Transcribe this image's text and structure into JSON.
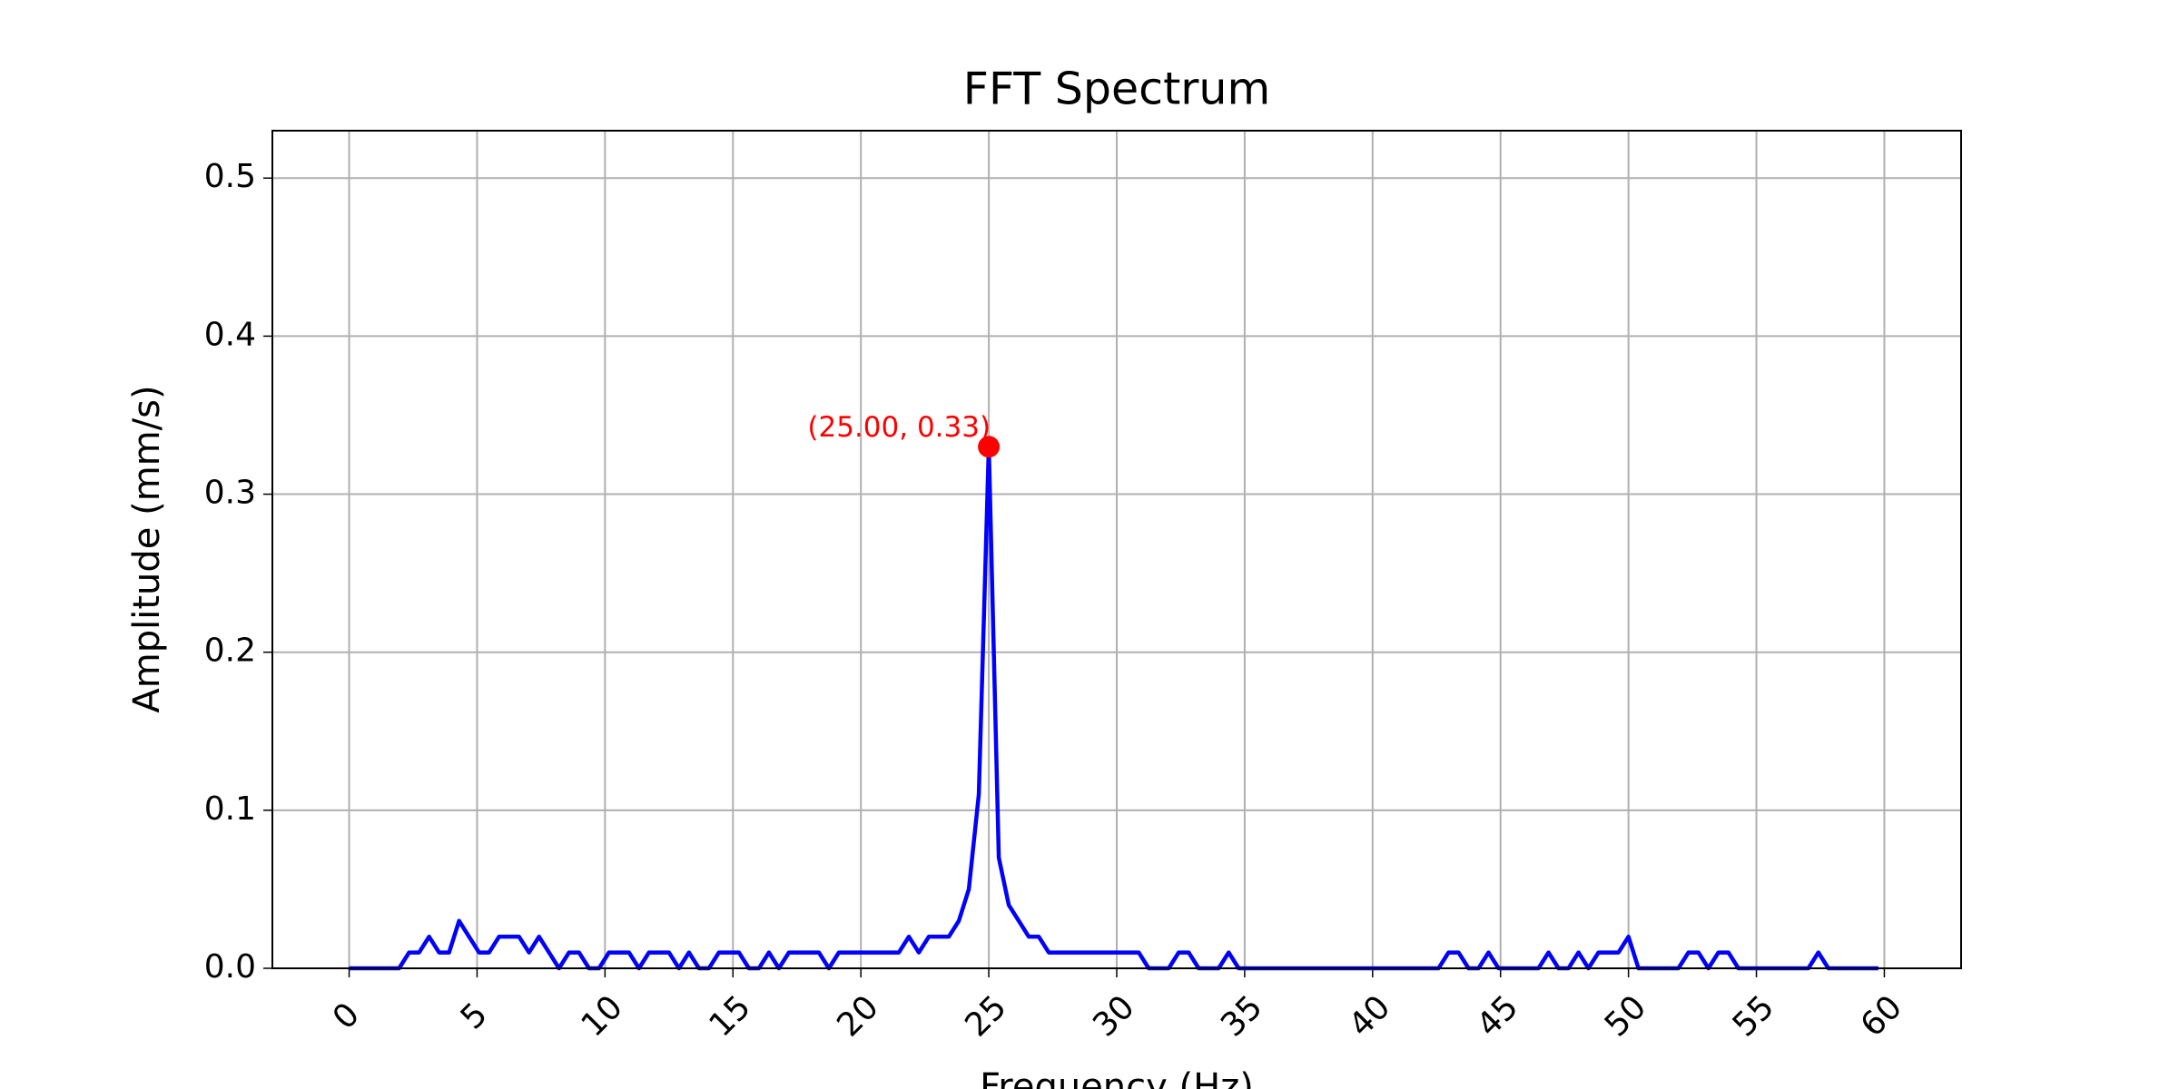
{
  "chart_data": {
    "type": "line",
    "title": "FFT Spectrum",
    "x_label": "Frequency (Hz)",
    "y_label": "Amplitude (mm/s)",
    "x": [
      0,
      0.390625,
      0.78125,
      1.171875,
      1.5625,
      1.953125,
      2.34375,
      2.734375,
      3.125,
      3.515625,
      3.90625,
      4.296875,
      4.6875,
      5.078125,
      5.46875,
      5.859375,
      6.25,
      6.640625,
      7.03125,
      7.421875,
      7.8125,
      8.203125,
      8.59375,
      8.984375,
      9.375,
      9.765625,
      10.15625,
      10.546875,
      10.9375,
      11.328125,
      11.71875,
      12.109375,
      12.5,
      12.890625,
      13.28125,
      13.671875,
      14.0625,
      14.453125,
      14.84375,
      15.234375,
      15.625,
      16.015625,
      16.40625,
      16.796875,
      17.1875,
      17.578125,
      17.96875,
      18.359375,
      18.75,
      19.140625,
      19.53125,
      19.921875,
      20.3125,
      20.703125,
      21.09375,
      21.484375,
      21.875,
      22.265625,
      22.65625,
      23.046875,
      23.4375,
      23.828125,
      24.21875,
      24.609375,
      25,
      25.390625,
      25.78125,
      26.171875,
      26.5625,
      26.953125,
      27.34375,
      27.734375,
      28.125,
      28.515625,
      28.90625,
      29.296875,
      29.6875,
      30.078125,
      30.46875,
      30.859375,
      31.25,
      31.640625,
      32.03125,
      32.421875,
      32.8125,
      33.203125,
      33.59375,
      33.984375,
      34.375,
      34.765625,
      35.15625,
      35.546875,
      35.9375,
      36.328125,
      36.71875,
      37.109375,
      37.5,
      37.890625,
      38.28125,
      38.671875,
      39.0625,
      39.453125,
      39.84375,
      40.234375,
      40.625,
      41.015625,
      41.40625,
      41.796875,
      42.1875,
      42.578125,
      42.96875,
      43.359375,
      43.75,
      44.140625,
      44.53125,
      44.921875,
      45.3125,
      45.703125,
      46.09375,
      46.484375,
      46.875,
      47.265625,
      47.65625,
      48.046875,
      48.4375,
      48.828125,
      49.21875,
      49.609375,
      50,
      50.390625,
      50.78125,
      51.171875,
      51.5625,
      51.953125,
      52.34375,
      52.734375,
      53.125,
      53.515625,
      53.90625,
      54.296875,
      54.6875,
      55.078125,
      55.46875,
      55.859375,
      56.25,
      56.640625,
      57.03125,
      57.421875,
      57.8125,
      58.203125,
      58.59375,
      58.984375,
      59.375,
      59.765625
    ],
    "series": [
      {
        "color": "#0000ff",
        "values": [
          0,
          0,
          0,
          0,
          0,
          0,
          0.01,
          0.01,
          0.02,
          0.01,
          0.01,
          0.03,
          0.02,
          0.01,
          0.01,
          0.02,
          0.02,
          0.02,
          0.01,
          0.02,
          0.01,
          0,
          0.01,
          0.01,
          0,
          0,
          0.01,
          0.01,
          0.01,
          0,
          0.01,
          0.01,
          0.01,
          0,
          0.01,
          0,
          0,
          0.01,
          0.01,
          0.01,
          0,
          0,
          0.01,
          0,
          0.01,
          0.01,
          0.01,
          0.01,
          0,
          0.01,
          0.01,
          0.01,
          0.01,
          0.01,
          0.01,
          0.01,
          0.02,
          0.01,
          0.02,
          0.02,
          0.02,
          0.03,
          0.05,
          0.11,
          0.33,
          0.07,
          0.04,
          0.03,
          0.02,
          0.02,
          0.01,
          0.01,
          0.01,
          0.01,
          0.01,
          0.01,
          0.01,
          0.01,
          0.01,
          0.01,
          0,
          0,
          0,
          0.01,
          0.01,
          0,
          0,
          0,
          0.01,
          0,
          0,
          0,
          0,
          0,
          0,
          0,
          0,
          0,
          0,
          0,
          0,
          0,
          0,
          0,
          0,
          0,
          0,
          0,
          0,
          0,
          0.01,
          0.01,
          0,
          0,
          0.01,
          0,
          0,
          0,
          0,
          0,
          0.01,
          0,
          0,
          0.01,
          0,
          0.01,
          0.01,
          0.01,
          0.02,
          0,
          0,
          0,
          0,
          0,
          0.01,
          0.01,
          0,
          0.01,
          0.01,
          0,
          0,
          0,
          0,
          0,
          0,
          0,
          0,
          0.01,
          0,
          0,
          0,
          0,
          0,
          0
        ]
      }
    ],
    "annotation": {
      "text": "(25.00, 0.33)",
      "x": 25,
      "y": 0.33,
      "color": "#ff0000"
    },
    "xlim": [
      -3,
      63
    ],
    "xticks": [
      0,
      5,
      10,
      15,
      20,
      25,
      30,
      35,
      40,
      45,
      50,
      55,
      60
    ],
    "ylim": [
      0,
      0.53
    ],
    "yticks": [
      {
        "value": 0,
        "label": "0.0"
      },
      0.1,
      0.2,
      0.3,
      0.4,
      0.5
    ],
    "grid": true
  }
}
